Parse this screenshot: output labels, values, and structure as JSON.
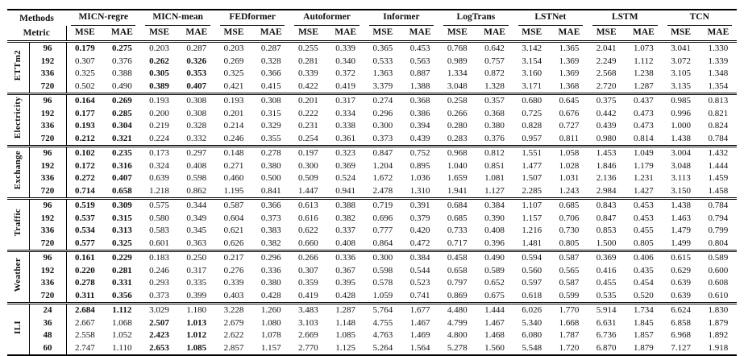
{
  "page": {
    "background": "#ffffff",
    "text_color": "#111111",
    "rule_color": "#000000"
  },
  "table": {
    "corner": {
      "methods": "Methods",
      "metric": "Metric"
    },
    "metrics": [
      "MSE",
      "MAE"
    ],
    "methods": [
      "MICN-regre",
      "MICN-mean",
      "FEDformer",
      "Autoformer",
      "Informer",
      "LogTrans",
      "LSTNet",
      "LSTM",
      "TCN"
    ],
    "sections": [
      {
        "name": "ETTm2",
        "rows": [
          {
            "horizon": "96",
            "bold": [
              0,
              1
            ],
            "values": [
              "0.179",
              "0.275",
              "0.203",
              "0.287",
              "0.203",
              "0.287",
              "0.255",
              "0.339",
              "0.365",
              "0.453",
              "0.768",
              "0.642",
              "3.142",
              "1.365",
              "2.041",
              "1.073",
              "3.041",
              "1.330"
            ]
          },
          {
            "horizon": "192",
            "bold": [
              2,
              3
            ],
            "values": [
              "0.307",
              "0.376",
              "0.262",
              "0.326",
              "0.269",
              "0.328",
              "0.281",
              "0.340",
              "0.533",
              "0.563",
              "0.989",
              "0.757",
              "3.154",
              "1.369",
              "2.249",
              "1.112",
              "3.072",
              "1.339"
            ]
          },
          {
            "horizon": "336",
            "bold": [
              2,
              3
            ],
            "values": [
              "0.325",
              "0.388",
              "0.305",
              "0.353",
              "0.325",
              "0.366",
              "0.339",
              "0.372",
              "1.363",
              "0.887",
              "1.334",
              "0.872",
              "3.160",
              "1.369",
              "2.568",
              "1.238",
              "3.105",
              "1.348"
            ]
          },
          {
            "horizon": "720",
            "bold": [
              2,
              3
            ],
            "values": [
              "0.502",
              "0.490",
              "0.389",
              "0.407",
              "0.421",
              "0.415",
              "0.422",
              "0.419",
              "3.379",
              "1.388",
              "3.048",
              "1.328",
              "3.171",
              "1.368",
              "2.720",
              "1.287",
              "3.135",
              "1.354"
            ]
          }
        ]
      },
      {
        "name": "Electricity",
        "rows": [
          {
            "horizon": "96",
            "bold": [
              0,
              1
            ],
            "values": [
              "0.164",
              "0.269",
              "0.193",
              "0.308",
              "0.193",
              "0.308",
              "0.201",
              "0.317",
              "0.274",
              "0.368",
              "0.258",
              "0.357",
              "0.680",
              "0.645",
              "0.375",
              "0.437",
              "0.985",
              "0.813"
            ]
          },
          {
            "horizon": "192",
            "bold": [
              0,
              1
            ],
            "values": [
              "0.177",
              "0.285",
              "0.200",
              "0.308",
              "0.201",
              "0.315",
              "0.222",
              "0.334",
              "0.296",
              "0.386",
              "0.266",
              "0.368",
              "0.725",
              "0.676",
              "0.442",
              "0.473",
              "0.996",
              "0.821"
            ]
          },
          {
            "horizon": "336",
            "bold": [
              0,
              1
            ],
            "values": [
              "0.193",
              "0.304",
              "0.219",
              "0.328",
              "0.214",
              "0.329",
              "0.231",
              "0.338",
              "0.300",
              "0.394",
              "0.280",
              "0.380",
              "0.828",
              "0.727",
              "0.439",
              "0.473",
              "1.000",
              "0.824"
            ]
          },
          {
            "horizon": "720",
            "bold": [
              0,
              1
            ],
            "values": [
              "0.212",
              "0.321",
              "0.224",
              "0.332",
              "0.246",
              "0.355",
              "0.254",
              "0.361",
              "0.373",
              "0.439",
              "0.283",
              "0.376",
              "0.957",
              "0.811",
              "0.980",
              "0.814",
              "1.438",
              "0.784"
            ]
          }
        ]
      },
      {
        "name": "Exchange",
        "rows": [
          {
            "horizon": "96",
            "bold": [
              0,
              1
            ],
            "values": [
              "0.102",
              "0.235",
              "0.173",
              "0.297",
              "0.148",
              "0.278",
              "0.197",
              "0.323",
              "0.847",
              "0.752",
              "0.968",
              "0.812",
              "1.551",
              "1.058",
              "1.453",
              "1.049",
              "3.004",
              "1.432"
            ]
          },
          {
            "horizon": "192",
            "bold": [
              0,
              1
            ],
            "values": [
              "0.172",
              "0.316",
              "0.324",
              "0.408",
              "0.271",
              "0.380",
              "0.300",
              "0.369",
              "1.204",
              "0.895",
              "1.040",
              "0.851",
              "1.477",
              "1.028",
              "1.846",
              "1.179",
              "3.048",
              "1.444"
            ]
          },
          {
            "horizon": "336",
            "bold": [
              0,
              1
            ],
            "values": [
              "0.272",
              "0.407",
              "0.639",
              "0.598",
              "0.460",
              "0.500",
              "0.509",
              "0.524",
              "1.672",
              "1.036",
              "1.659",
              "1.081",
              "1.507",
              "1.031",
              "2.136",
              "1.231",
              "3.113",
              "1.459"
            ]
          },
          {
            "horizon": "720",
            "bold": [
              0,
              1
            ],
            "values": [
              "0.714",
              "0.658",
              "1.218",
              "0.862",
              "1.195",
              "0.841",
              "1.447",
              "0.941",
              "2.478",
              "1.310",
              "1.941",
              "1.127",
              "2.285",
              "1.243",
              "2.984",
              "1.427",
              "3.150",
              "1.458"
            ]
          }
        ]
      },
      {
        "name": "Traffic",
        "rows": [
          {
            "horizon": "96",
            "bold": [
              0,
              1
            ],
            "values": [
              "0.519",
              "0.309",
              "0.575",
              "0.344",
              "0.587",
              "0.366",
              "0.613",
              "0.388",
              "0.719",
              "0.391",
              "0.684",
              "0.384",
              "1.107",
              "0.685",
              "0.843",
              "0.453",
              "1.438",
              "0.784"
            ]
          },
          {
            "horizon": "192",
            "bold": [
              0,
              1
            ],
            "values": [
              "0.537",
              "0.315",
              "0.580",
              "0.349",
              "0.604",
              "0.373",
              "0.616",
              "0.382",
              "0.696",
              "0.379",
              "0.685",
              "0.390",
              "1.157",
              "0.706",
              "0.847",
              "0.453",
              "1.463",
              "0.794"
            ]
          },
          {
            "horizon": "336",
            "bold": [
              0,
              1
            ],
            "values": [
              "0.534",
              "0.313",
              "0.583",
              "0.345",
              "0.621",
              "0.383",
              "0.622",
              "0.337",
              "0.777",
              "0.420",
              "0.733",
              "0.408",
              "1.216",
              "0.730",
              "0.853",
              "0.455",
              "1.479",
              "0.799"
            ]
          },
          {
            "horizon": "720",
            "bold": [
              0,
              1
            ],
            "values": [
              "0.577",
              "0.325",
              "0.601",
              "0.363",
              "0.626",
              "0.382",
              "0.660",
              "0.408",
              "0.864",
              "0.472",
              "0.717",
              "0.396",
              "1.481",
              "0.805",
              "1.500",
              "0.805",
              "1.499",
              "0.804"
            ]
          }
        ]
      },
      {
        "name": "Weather",
        "rows": [
          {
            "horizon": "96",
            "bold": [
              0,
              1
            ],
            "values": [
              "0.161",
              "0.229",
              "0.183",
              "0.250",
              "0.217",
              "0.296",
              "0.266",
              "0.336",
              "0.300",
              "0.384",
              "0.458",
              "0.490",
              "0.594",
              "0.587",
              "0.369",
              "0.406",
              "0.615",
              "0.589"
            ]
          },
          {
            "horizon": "192",
            "bold": [
              0,
              1
            ],
            "values": [
              "0.220",
              "0.281",
              "0.246",
              "0.317",
              "0.276",
              "0.336",
              "0.307",
              "0.367",
              "0.598",
              "0.544",
              "0.658",
              "0.589",
              "0.560",
              "0.565",
              "0.416",
              "0.435",
              "0.629",
              "0.600"
            ]
          },
          {
            "horizon": "336",
            "bold": [
              0,
              1
            ],
            "values": [
              "0.278",
              "0.331",
              "0.293",
              "0.335",
              "0.339",
              "0.380",
              "0.359",
              "0.395",
              "0.578",
              "0.523",
              "0.797",
              "0.652",
              "0.597",
              "0.587",
              "0.455",
              "0.454",
              "0.639",
              "0.608"
            ]
          },
          {
            "horizon": "720",
            "bold": [
              0,
              1
            ],
            "values": [
              "0.311",
              "0.356",
              "0.373",
              "0.399",
              "0.403",
              "0.428",
              "0.419",
              "0.428",
              "1.059",
              "0.741",
              "0.869",
              "0.675",
              "0.618",
              "0.599",
              "0.535",
              "0.520",
              "0.639",
              "0.610"
            ]
          }
        ]
      },
      {
        "name": "ILI",
        "rows": [
          {
            "horizon": "24",
            "bold": [
              0,
              1
            ],
            "values": [
              "2.684",
              "1.112",
              "3.029",
              "1.180",
              "3.228",
              "1.260",
              "3.483",
              "1.287",
              "5.764",
              "1.677",
              "4.480",
              "1.444",
              "6.026",
              "1.770",
              "5.914",
              "1.734",
              "6.624",
              "1.830"
            ]
          },
          {
            "horizon": "36",
            "bold": [
              2,
              3
            ],
            "values": [
              "2.667",
              "1.068",
              "2.507",
              "1.013",
              "2.679",
              "1.080",
              "3.103",
              "1.148",
              "4.755",
              "1.467",
              "4.799",
              "1.467",
              "5.340",
              "1.668",
              "6.631",
              "1.845",
              "6.858",
              "1.879"
            ]
          },
          {
            "horizon": "48",
            "bold": [
              2,
              3
            ],
            "values": [
              "2.558",
              "1.052",
              "2.423",
              "1.012",
              "2.622",
              "1.078",
              "2.669",
              "1.085",
              "4.763",
              "1.469",
              "4.800",
              "1.468",
              "6.080",
              "1.787",
              "6.736",
              "1.857",
              "6.968",
              "1.892"
            ]
          },
          {
            "horizon": "60",
            "bold": [
              2,
              3
            ],
            "values": [
              "2.747",
              "1.110",
              "2.653",
              "1.085",
              "2.857",
              "1.157",
              "2.770",
              "1.125",
              "5.264",
              "1.564",
              "5.278",
              "1.560",
              "5.548",
              "1.720",
              "6.870",
              "1.879",
              "7.127",
              "1.918"
            ]
          }
        ]
      }
    ]
  }
}
